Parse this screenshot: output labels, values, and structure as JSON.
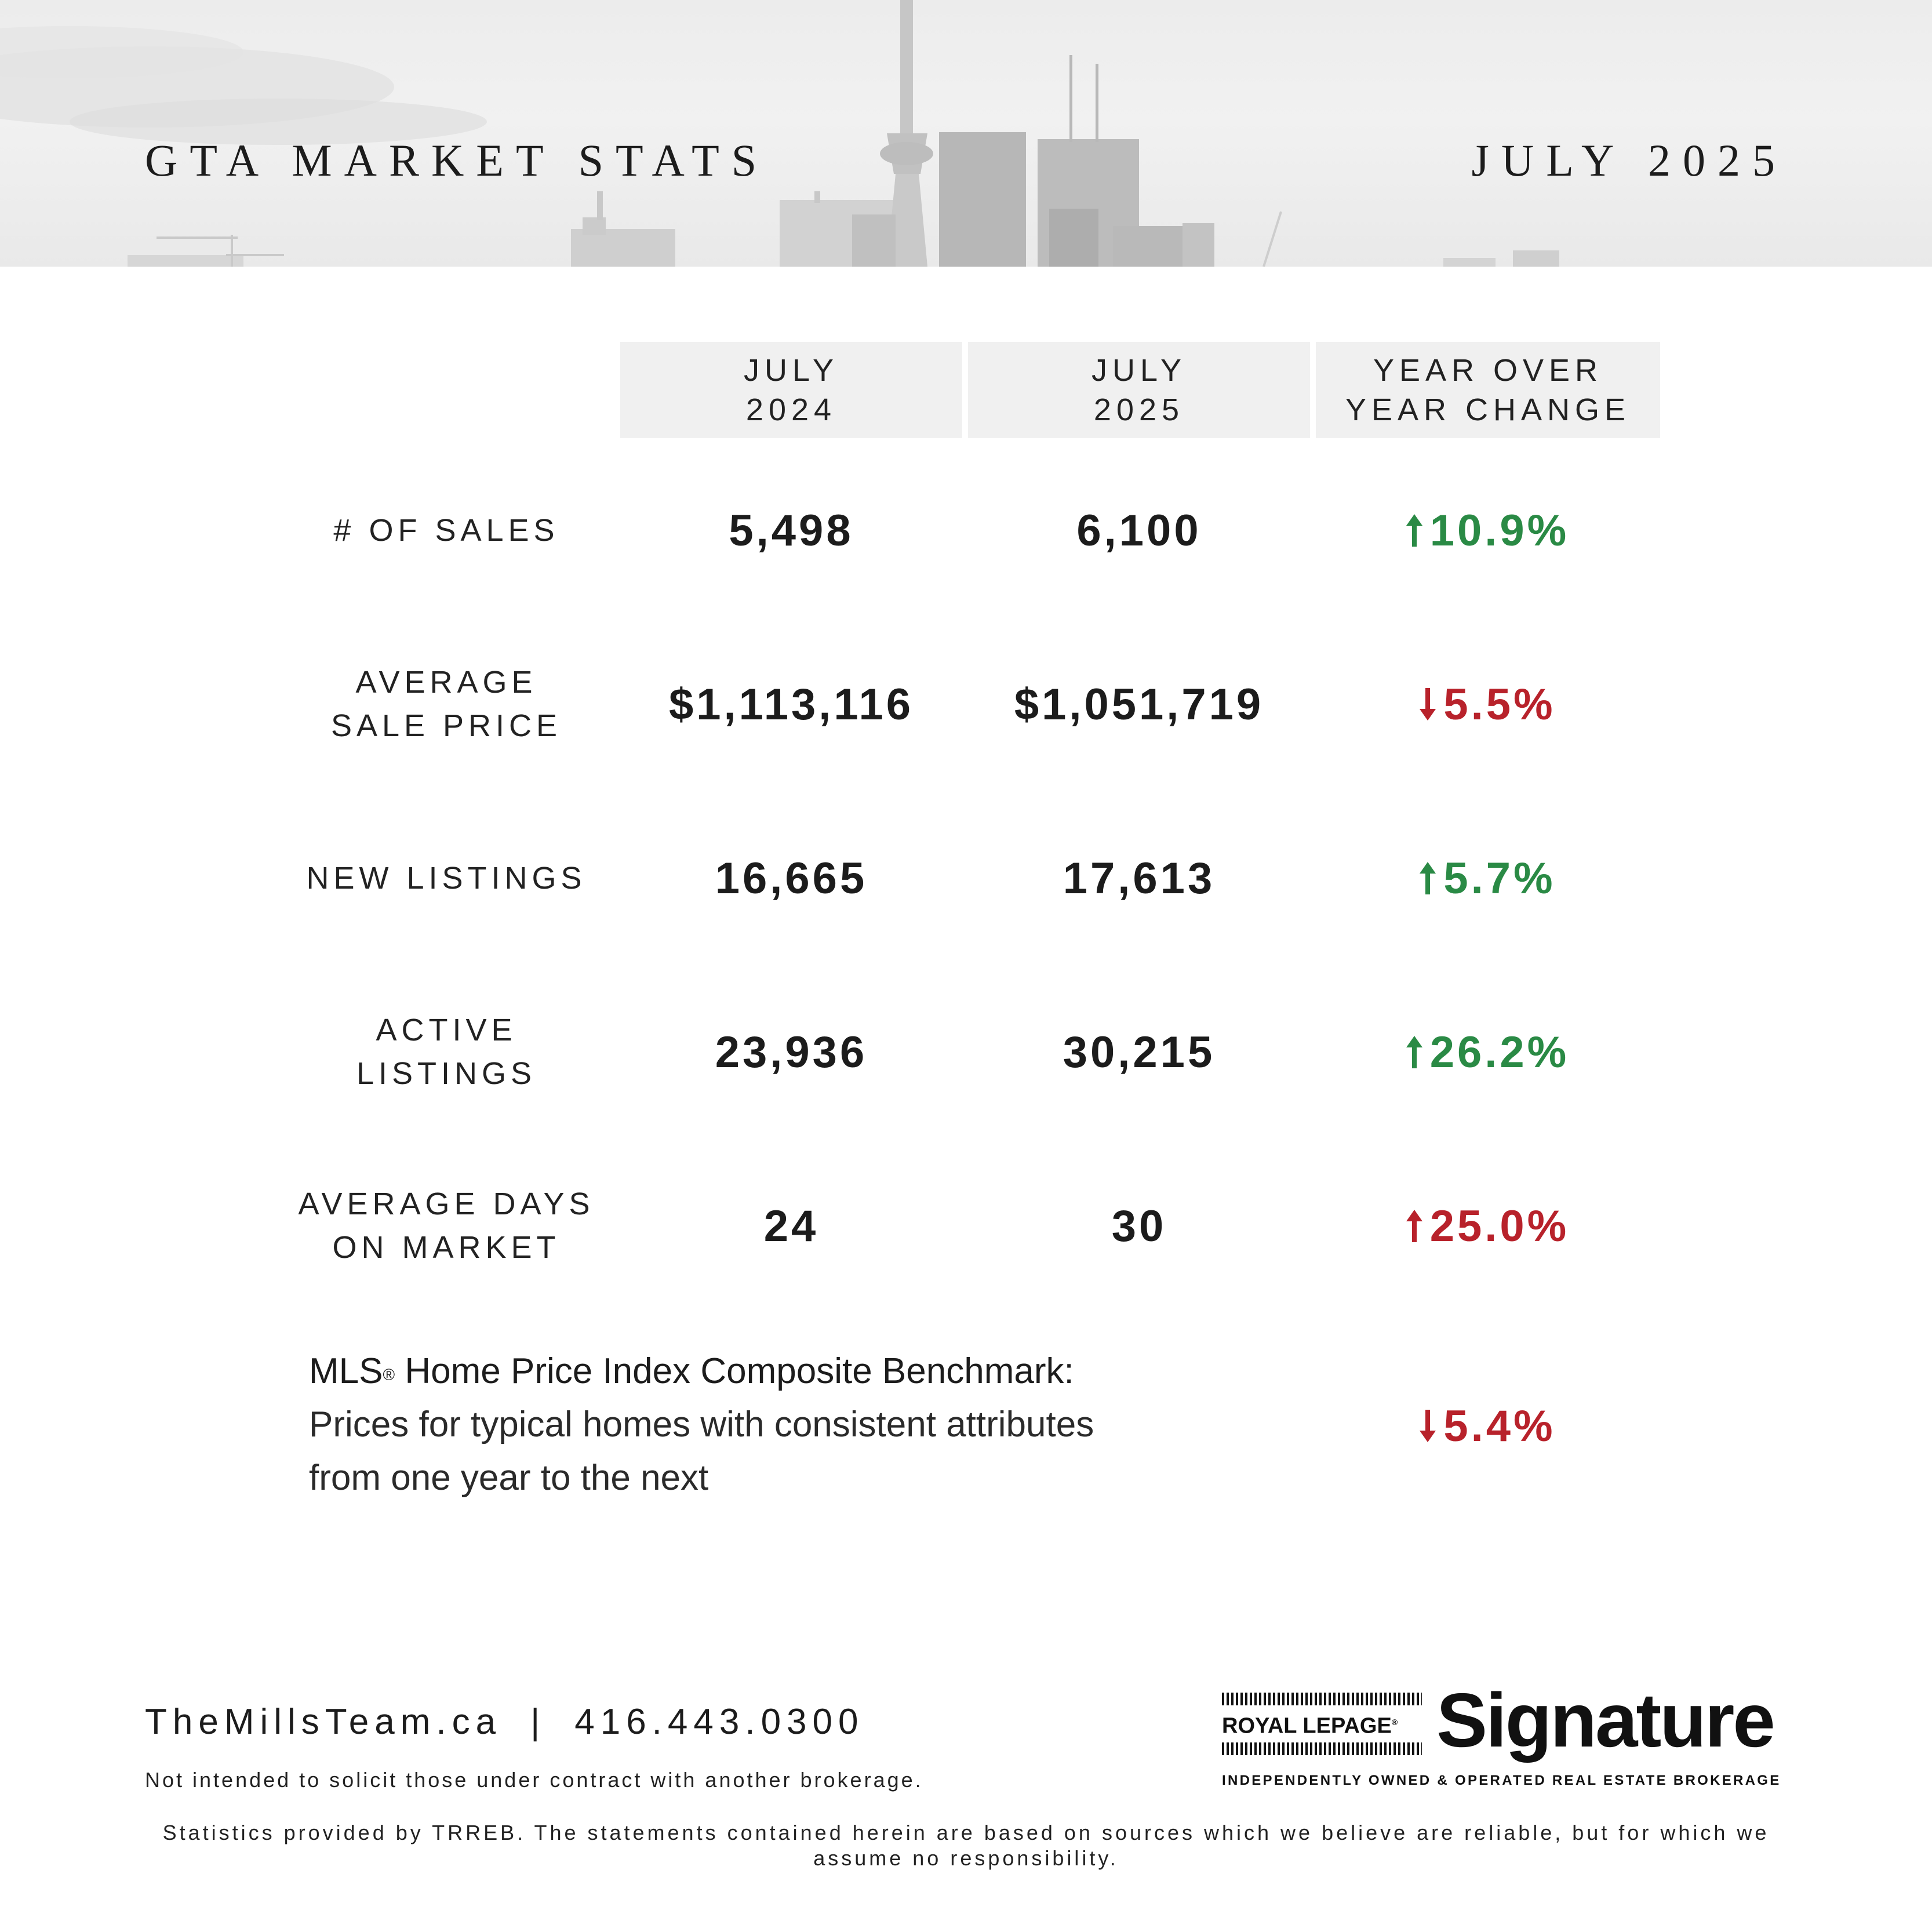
{
  "header": {
    "title": "GTA MARKET STATS",
    "date": "JULY 2025"
  },
  "table": {
    "columns": [
      {
        "line1": "JULY",
        "line2": "2024"
      },
      {
        "line1": "JULY",
        "line2": "2025"
      },
      {
        "line1": "YEAR OVER",
        "line2": "YEAR CHANGE"
      }
    ],
    "rows": [
      {
        "label_line1": "# OF SALES",
        "label_line2": "",
        "v2024": "5,498",
        "v2025": "6,100",
        "change": "10.9%",
        "direction": "up",
        "tone": "positive"
      },
      {
        "label_line1": "AVERAGE",
        "label_line2": "SALE PRICE",
        "v2024": "$1,113,116",
        "v2025": "$1,051,719",
        "change": "5.5%",
        "direction": "down",
        "tone": "negative"
      },
      {
        "label_line1": "NEW LISTINGS",
        "label_line2": "",
        "v2024": "16,665",
        "v2025": "17,613",
        "change": "5.7%",
        "direction": "up",
        "tone": "positive"
      },
      {
        "label_line1": "ACTIVE",
        "label_line2": "LISTINGS",
        "v2024": "23,936",
        "v2025": "30,215",
        "change": "26.2%",
        "direction": "up",
        "tone": "positive"
      },
      {
        "label_line1": "AVERAGE DAYS",
        "label_line2": "ON MARKET",
        "v2024": "24",
        "v2025": "30",
        "change": "25.0%",
        "direction": "up",
        "tone": "negative"
      }
    ]
  },
  "mls": {
    "title_prefix": "MLS",
    "registered": "®",
    "title_suffix": " Home Price Index Composite Benchmark:",
    "line2": "Prices for typical homes with consistent attributes",
    "line3": "from one year to the next",
    "change": "5.4%",
    "direction": "down",
    "tone": "negative"
  },
  "footer": {
    "website": "TheMillsTeam.ca",
    "separator": "|",
    "phone": "416.443.0300",
    "disclaimer": "Not intended to solicit those under contract with another brokerage.",
    "stats_note": "Statistics provided by TRREB. The statements contained herein are based on sources which we believe are reliable, but for which we assume no responsibility."
  },
  "logo": {
    "brand": "ROYAL LEPAGE",
    "registered": "®",
    "name": "Signature",
    "tagline": "INDEPENDENTLY OWNED & OPERATED REAL ESTATE BROKERAGE"
  },
  "colors": {
    "positive": "#2a8a45",
    "negative": "#b8222b",
    "header_bg": "#ececec",
    "column_header_bg": "#f0f0f0",
    "text": "#1c1c1c"
  },
  "icons": {
    "up": "arrow-up-icon",
    "down": "arrow-down-icon"
  }
}
